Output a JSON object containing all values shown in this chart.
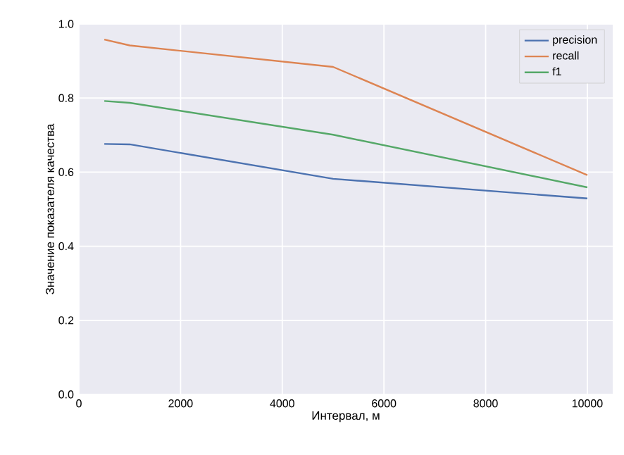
{
  "chart_data": {
    "type": "line",
    "xlabel": "Интервал, м",
    "ylabel": "Значение показателя качества",
    "x": [
      500,
      1000,
      5000,
      10000
    ],
    "series": [
      {
        "name": "precision",
        "color": "#4c72b0",
        "values": [
          0.676,
          0.675,
          0.582,
          0.529
        ]
      },
      {
        "name": "recall",
        "color": "#dd8452",
        "values": [
          0.958,
          0.942,
          0.884,
          0.592
        ]
      },
      {
        "name": "f1",
        "color": "#55a868",
        "values": [
          0.792,
          0.787,
          0.701,
          0.559
        ]
      }
    ],
    "xlim": [
      0,
      10500
    ],
    "ylim": [
      0,
      1
    ],
    "xticks": [
      0,
      2000,
      4000,
      6000,
      8000,
      10000
    ],
    "yticks": [
      {
        "value": 0,
        "label": "0.0"
      },
      {
        "value": 0.2,
        "label": "0.2"
      },
      {
        "value": 0.4,
        "label": "0.4"
      },
      {
        "value": 0.6,
        "label": "0.6"
      },
      {
        "value": 0.8,
        "label": "0.8"
      },
      {
        "value": 1,
        "label": "1.0"
      }
    ],
    "grid": true,
    "legend": "top right"
  }
}
